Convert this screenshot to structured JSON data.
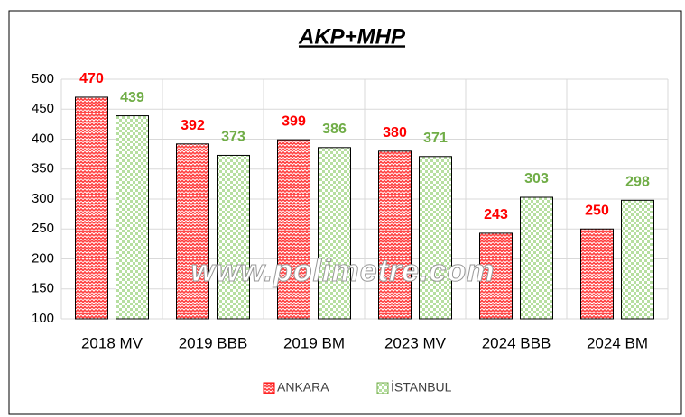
{
  "chart_data": {
    "type": "bar",
    "title": "AKP+MHP",
    "annotation": "www.polimetre.com",
    "categories": [
      "2018 MV",
      "2019 BBB",
      "2019 BM",
      "2023 MV",
      "2024 BBB",
      "2024 BM"
    ],
    "series": [
      {
        "name": "ANKARA",
        "color": "#ff0000",
        "values": [
          470,
          392,
          399,
          380,
          243,
          250
        ]
      },
      {
        "name": "İSTANBUL",
        "color": "#70ad47",
        "values": [
          439,
          373,
          386,
          371,
          303,
          298
        ]
      }
    ],
    "ylim": [
      100,
      500
    ],
    "yticks": [
      100,
      150,
      200,
      250,
      300,
      350,
      400,
      450,
      500
    ],
    "grid": true,
    "legend": "bottom"
  }
}
